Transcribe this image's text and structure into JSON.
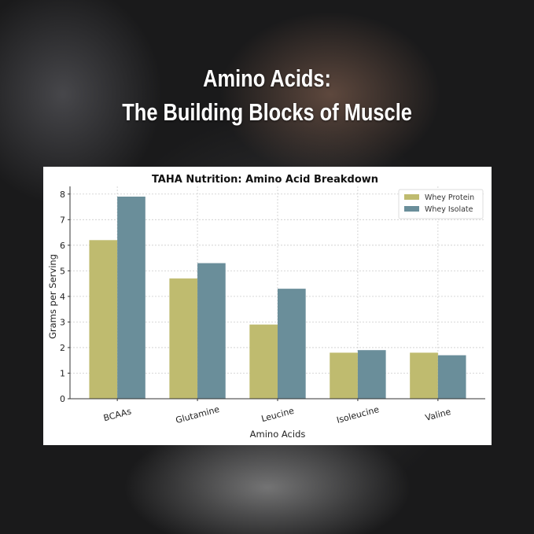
{
  "headline": {
    "line1": "Amino Acids:",
    "line2": "The Building Blocks of Muscle"
  },
  "chart_data": {
    "type": "bar",
    "title": "TAHA Nutrition: Amino Acid Breakdown",
    "xlabel": "Amino Acids",
    "ylabel": "Grams per Serving",
    "categories": [
      "BCAAs",
      "Glutamine",
      "Leucine",
      "Isoleucine",
      "Valine"
    ],
    "series": [
      {
        "name": "Whey Protein",
        "values": [
          6.2,
          4.7,
          2.9,
          1.8,
          1.8
        ],
        "color": "#bfbb6f"
      },
      {
        "name": "Whey Isolate",
        "values": [
          7.9,
          5.3,
          4.3,
          1.9,
          1.7
        ],
        "color": "#6a8e9a"
      }
    ],
    "ylim": [
      0,
      8.3
    ],
    "yticks": [
      0,
      1,
      2,
      3,
      4,
      5,
      6,
      7,
      8
    ],
    "grid": true,
    "legend": "top-right"
  }
}
